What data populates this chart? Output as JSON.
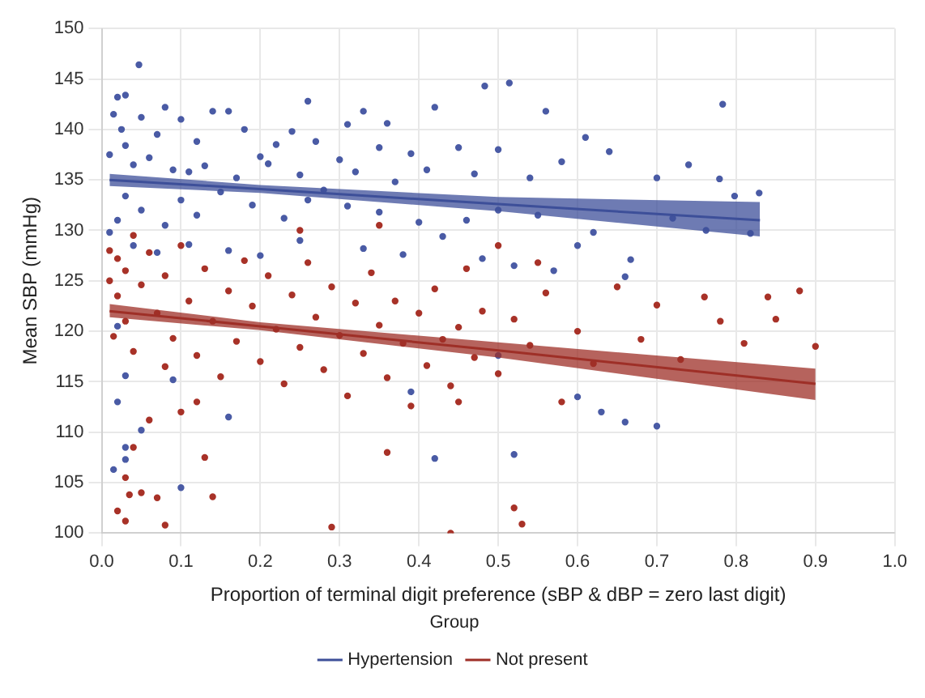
{
  "chart_data": {
    "type": "scatter",
    "xlabel": "Proportion of terminal digit preference (sBP & dBP = zero last digit)",
    "ylabel": "Mean SBP (mmHg)",
    "legend_title": "Group",
    "legend": "bottom",
    "grid": true,
    "xlim": [
      0,
      1
    ],
    "xticks": [
      {
        "value": 0,
        "label": "0.0"
      },
      {
        "value": 0.1,
        "label": "0.1"
      },
      {
        "value": 0.2,
        "label": "0.2"
      },
      {
        "value": 0.3,
        "label": "0.3"
      },
      {
        "value": 0.4,
        "label": "0.4"
      },
      {
        "value": 0.5,
        "label": "0.5"
      },
      {
        "value": 0.6,
        "label": "0.6"
      },
      {
        "value": 0.7,
        "label": "0.7"
      },
      {
        "value": 0.8,
        "label": "0.8"
      },
      {
        "value": 0.9,
        "label": "0.9"
      },
      {
        "value": 1,
        "label": "1.0"
      }
    ],
    "ylim": [
      100,
      150
    ],
    "yticks": [
      100,
      105,
      110,
      115,
      120,
      125,
      130,
      135,
      140,
      145,
      150
    ],
    "series": [
      {
        "marker": "circle",
        "color": "#4a5ba5",
        "x": [
          0.047,
          0.02,
          0.03,
          0.015,
          0.025,
          0.05,
          0.08,
          0.1,
          0.14,
          0.16,
          0.18,
          0.26,
          0.24,
          0.31,
          0.33,
          0.36,
          0.42,
          0.483,
          0.514,
          0.783,
          0.61,
          0.56,
          0.5,
          0.45,
          0.39,
          0.35,
          0.3,
          0.27,
          0.22,
          0.2,
          0.12,
          0.07,
          0.03,
          0.01,
          0.04,
          0.06,
          0.09,
          0.11,
          0.13,
          0.17,
          0.21,
          0.25,
          0.28,
          0.32,
          0.37,
          0.41,
          0.47,
          0.54,
          0.58,
          0.64,
          0.7,
          0.74,
          0.779,
          0.829,
          0.798,
          0.818,
          0.762,
          0.667,
          0.6,
          0.55,
          0.5,
          0.46,
          0.4,
          0.35,
          0.31,
          0.26,
          0.23,
          0.19,
          0.15,
          0.12,
          0.1,
          0.08,
          0.05,
          0.03,
          0.02,
          0.01,
          0.04,
          0.07,
          0.11,
          0.16,
          0.2,
          0.25,
          0.33,
          0.38,
          0.43,
          0.48,
          0.52,
          0.57,
          0.62,
          0.66,
          0.72,
          0.02,
          0.03,
          0.02,
          0.03,
          0.015,
          0.05,
          0.09,
          0.1,
          0.16,
          0.39,
          0.42,
          0.52,
          0.5,
          0.6,
          0.63,
          0.66,
          0.7,
          0.03
        ],
        "values": [
          146.4,
          143.2,
          143.4,
          141.5,
          140.0,
          141.2,
          142.2,
          141.0,
          141.8,
          141.8,
          140.0,
          142.8,
          139.8,
          140.5,
          141.8,
          140.6,
          142.2,
          144.3,
          144.6,
          142.5,
          139.2,
          141.8,
          138.0,
          138.2,
          137.6,
          138.2,
          137.0,
          138.8,
          138.5,
          137.3,
          138.8,
          139.5,
          138.4,
          137.5,
          136.5,
          137.2,
          136.0,
          135.8,
          136.4,
          135.2,
          136.6,
          135.5,
          134.0,
          135.8,
          134.8,
          136.0,
          135.6,
          135.2,
          136.8,
          137.8,
          135.2,
          136.5,
          135.1,
          133.7,
          133.4,
          129.7,
          130.0,
          127.1,
          128.5,
          131.5,
          132.0,
          131.0,
          130.8,
          131.8,
          132.4,
          133.0,
          131.2,
          132.5,
          133.8,
          131.5,
          133.0,
          130.5,
          132.0,
          133.4,
          131.0,
          129.8,
          128.5,
          127.8,
          128.6,
          128.0,
          127.5,
          129.0,
          128.2,
          127.6,
          129.4,
          127.2,
          126.5,
          126.0,
          129.8,
          125.4,
          131.2,
          120.5,
          115.6,
          113.0,
          107.3,
          106.3,
          110.2,
          115.2,
          104.5,
          111.5,
          114.0,
          107.4,
          107.8,
          117.6,
          113.5,
          112.0,
          111.0,
          110.6,
          108.5
        ]
      },
      {
        "marker": "circle",
        "color": "#a83228",
        "x": [
          0.01,
          0.02,
          0.03,
          0.04,
          0.01,
          0.02,
          0.03,
          0.015,
          0.04,
          0.05,
          0.06,
          0.07,
          0.08,
          0.09,
          0.1,
          0.11,
          0.12,
          0.13,
          0.14,
          0.15,
          0.16,
          0.17,
          0.18,
          0.19,
          0.2,
          0.21,
          0.22,
          0.23,
          0.24,
          0.25,
          0.26,
          0.27,
          0.28,
          0.29,
          0.3,
          0.31,
          0.32,
          0.33,
          0.34,
          0.35,
          0.36,
          0.37,
          0.38,
          0.39,
          0.4,
          0.41,
          0.42,
          0.43,
          0.44,
          0.45,
          0.46,
          0.47,
          0.48,
          0.5,
          0.52,
          0.54,
          0.56,
          0.58,
          0.6,
          0.62,
          0.65,
          0.68,
          0.7,
          0.73,
          0.76,
          0.78,
          0.81,
          0.84,
          0.85,
          0.88,
          0.9,
          0.55,
          0.5,
          0.35,
          0.25,
          0.06,
          0.04,
          0.03,
          0.02,
          0.03,
          0.035,
          0.05,
          0.07,
          0.08,
          0.13,
          0.14,
          0.29,
          0.44,
          0.52,
          0.53,
          0.45,
          0.36,
          0.1,
          0.08,
          0.12
        ],
        "values": [
          128.0,
          127.2,
          126.0,
          129.5,
          125.0,
          123.5,
          121.0,
          119.5,
          118.0,
          124.6,
          127.8,
          121.8,
          125.5,
          119.3,
          128.5,
          123.0,
          117.6,
          126.2,
          121.0,
          115.5,
          124.0,
          119.0,
          127.0,
          122.5,
          117.0,
          125.5,
          120.2,
          114.8,
          123.6,
          118.4,
          126.8,
          121.4,
          116.2,
          124.4,
          119.6,
          113.6,
          122.8,
          117.8,
          125.8,
          120.6,
          115.4,
          123.0,
          118.8,
          112.6,
          121.8,
          116.6,
          124.2,
          119.2,
          114.6,
          120.4,
          126.2,
          117.4,
          122.0,
          115.8,
          121.2,
          118.6,
          123.8,
          113.0,
          120.0,
          116.8,
          124.4,
          119.2,
          122.6,
          117.2,
          123.4,
          121.0,
          118.8,
          123.4,
          121.2,
          124.0,
          118.5,
          126.8,
          128.5,
          130.5,
          130.0,
          111.2,
          108.5,
          105.5,
          102.2,
          101.2,
          103.8,
          104.0,
          103.5,
          100.8,
          107.5,
          103.6,
          100.6,
          100.0,
          102.5,
          100.9,
          113.0,
          108.0,
          112.0,
          116.5,
          113.0
        ]
      },
      {
        "type": "line",
        "marker": "none",
        "name": "Hypertension",
        "color": "#3d4f99",
        "x": [
          0.01,
          0.2,
          0.5,
          0.83
        ],
        "values": [
          135.0,
          134.1,
          132.6,
          131.0
        ],
        "lower": [
          134.4,
          133.7,
          131.9,
          129.4
        ],
        "upper": [
          135.6,
          134.5,
          133.3,
          132.8
        ]
      },
      {
        "type": "line",
        "marker": "none",
        "name": "Not present",
        "color": "#9e2f27",
        "x": [
          0.01,
          0.2,
          0.5,
          0.9
        ],
        "values": [
          122.0,
          120.5,
          118.1,
          114.8
        ],
        "lower": [
          121.4,
          120.1,
          117.4,
          113.2
        ],
        "upper": [
          122.7,
          120.9,
          118.9,
          116.3
        ]
      }
    ]
  }
}
